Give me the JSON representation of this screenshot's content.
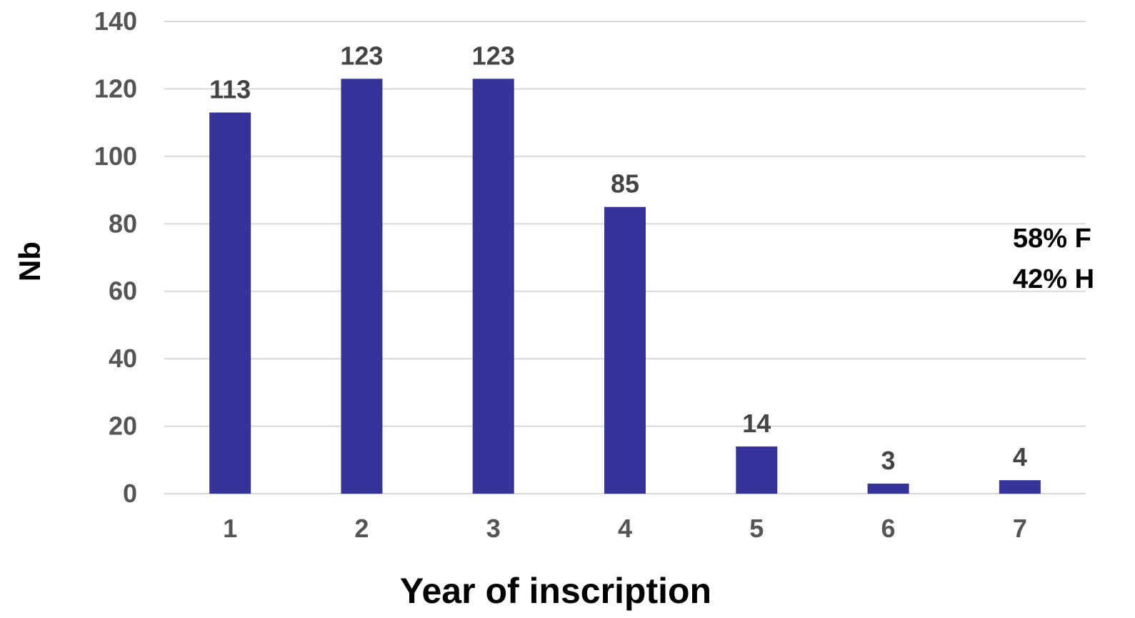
{
  "chart_data": {
    "type": "bar",
    "categories": [
      "1",
      "2",
      "3",
      "4",
      "5",
      "6",
      "7"
    ],
    "values": [
      113,
      123,
      123,
      85,
      14,
      3,
      4
    ],
    "data_labels": [
      "113",
      "123",
      "123",
      "85",
      "14",
      "3",
      "4"
    ],
    "y_ticks": [
      0,
      20,
      40,
      60,
      80,
      100,
      120,
      140
    ],
    "ylim": [
      0,
      140
    ],
    "xlabel": "Year of inscription",
    "ylabel": "Nb",
    "title": "",
    "grid": true,
    "legend": "none",
    "bar_color": "#35349a",
    "annotations": [
      "58% F",
      "42% H"
    ]
  }
}
